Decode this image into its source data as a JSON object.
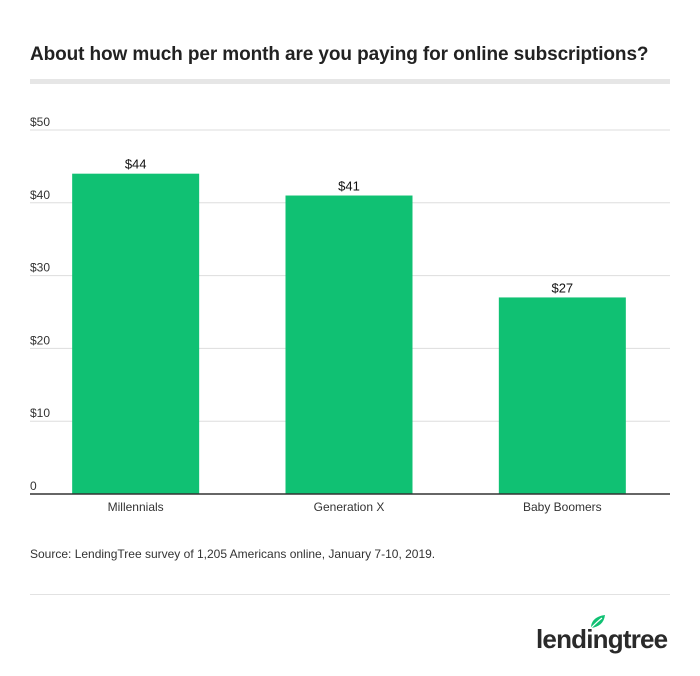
{
  "title": "About how much per month are you paying for online subscriptions?",
  "source": "Source: LendingTree survey of 1,205 Americans online, January 7-10, 2019.",
  "logo_text": "lendingtree",
  "colors": {
    "bar": "#10c173",
    "grid": "#dddddd",
    "axis": "#333333",
    "logo_leaf": "#10c173"
  },
  "chart_data": {
    "type": "bar",
    "categories": [
      "Millennials",
      "Generation X",
      "Baby Boomers"
    ],
    "values": [
      44,
      41,
      27
    ],
    "data_labels": [
      "$44",
      "$41",
      "$27"
    ],
    "ylim": [
      0,
      50
    ],
    "yticks": [
      0,
      10,
      20,
      30,
      40,
      50
    ],
    "ytick_labels": [
      "0",
      "$10",
      "$20",
      "$30",
      "$40",
      "$50"
    ],
    "grid": true
  }
}
